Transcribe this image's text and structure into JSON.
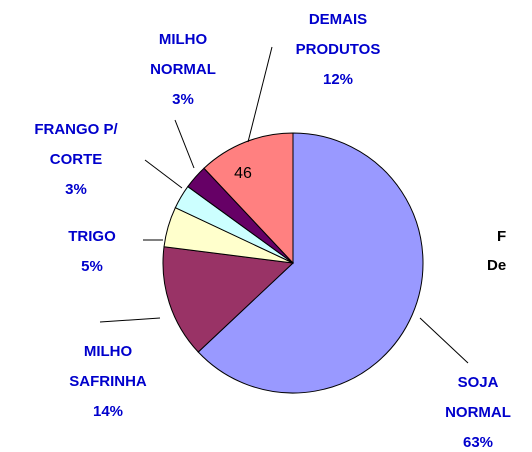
{
  "chart_data": {
    "type": "pie",
    "categories": [
      [
        "SOJA",
        "NORMAL"
      ],
      [
        "MILHO",
        "SAFRINHA"
      ],
      [
        "TRIGO"
      ],
      [
        "FRANGO P/",
        "CORTE"
      ],
      [
        "MILHO",
        "NORMAL"
      ],
      [
        "DEMAIS",
        "PRODUTOS"
      ]
    ],
    "values": [
      63,
      14,
      5,
      3,
      3,
      12
    ],
    "value_labels": [
      "63%",
      "14%",
      "5%",
      "3%",
      "3%",
      "12%"
    ],
    "colors": [
      "#9999ff",
      "#993366",
      "#ffffcc",
      "#ccffff",
      "#660066",
      "#ff8080"
    ],
    "annotations": [
      "46",
      "F",
      "De"
    ]
  }
}
